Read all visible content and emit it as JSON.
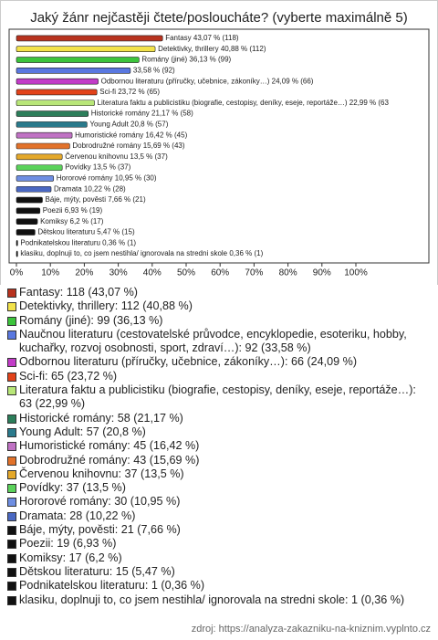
{
  "chart_data": {
    "type": "bar",
    "orientation": "horizontal",
    "title": "Jaký žánr nejčastěji čtete/posloucháte? (vyberte maximálně 5)",
    "categories": [
      "Fantasy: 118 (43,07 %)",
      "Detektivky, thrillery: 112 (40,88 %)",
      "Romány (jiné): 99 (36,13 %)",
      "Naučnou literaturu (cestovatelské průvodce, encyklopedie, esoteriku, hobby, kuchařky, rozvoj osobnosti, sport, zdraví…): 92 (33,58 %)",
      "Odbornou literaturu (příručky, učebnice, zákoníky…): 66 (24,09 %)",
      "Sci-fi: 65 (23,72 %)",
      "Literatura faktu a publicistiku (biografie, cestopisy, deníky, eseje, reportáže…): 63 (22,99 %)",
      "Historické romány: 58 (21,17 %)",
      "Young Adult: 57 (20,8 %)",
      "Humoristické romány: 45 (16,42 %)",
      "Dobrodružné romány: 43 (15,69 %)",
      "Červenou knihovnu: 37 (13,5 %)",
      "Povídky: 37 (13,5 %)",
      "Hororové romány: 30 (10,95 %)",
      "Dramata: 28 (10,22 %)",
      "Báje, mýty, pověsti: 21 (7,66 %)",
      "Poezii: 19 (6,93 %)",
      "Komiksy: 17 (6,2 %)",
      "Dětskou literaturu: 15 (5,47 %)",
      "Podnikatelskou literaturu: 1 (0,36 %)",
      "klasiku, doplnuji to, co jsem nestihla/ ignorovala na stredni skole: 1 (0,36 %)"
    ],
    "values": [
      43.07,
      40.88,
      36.13,
      33.58,
      24.09,
      23.72,
      22.99,
      21.17,
      20.8,
      16.42,
      15.69,
      13.5,
      13.5,
      10.95,
      10.22,
      7.66,
      6.93,
      6.2,
      5.47,
      0.36,
      0.36
    ],
    "value_labels": [
      "Fantasy 43,07 % (118)",
      "Detektivky, thrillery 40,88 % (112)",
      "Romány (jiné) 36,13 % (99)",
      "33,58 % (92)",
      "Odbornou literaturu (příručky, učebnice, zákoníky…) 24,09 % (66)",
      "Sci-fi 23,72 % (65)",
      "Literatura faktu a publicistiku (biografie, cestopisy, deníky, eseje, reportáže…) 22,99 % (63",
      "Historické romány 21,17 % (58)",
      "Young Adult 20,8 % (57)",
      "Humoristické romány 16,42 % (45)",
      "Dobrodružné romány 15,69 % (43)",
      "Červenou knihovnu 13,5 % (37)",
      "Povídky 13,5 % (37)",
      "Hororové romány 10,95 % (30)",
      "Dramata 10,22 % (28)",
      "Báje, mýty, pověsti 7,66 % (21)",
      "Poezii 6,93 % (19)",
      "Komiksy 6,2 % (17)",
      "Dětskou literaturu 5,47 % (15)",
      "Podnikatelskou literaturu 0,36 % (1)",
      "klasiku, doplnuji to, co jsem nestihla/ ignorovala na stredni skole 0,36 % (1)"
    ],
    "colors": [
      "#b8321e",
      "#f2e24a",
      "#3cc43c",
      "#5a78e0",
      "#c23cc8",
      "#e2421a",
      "#b8e678",
      "#2c7e5a",
      "#2a7a8c",
      "#c072c4",
      "#e2722a",
      "#e4a82a",
      "#5ad25a",
      "#6e8ee2",
      "#4a68c2",
      "#111111",
      "#111111",
      "#111111",
      "#111111",
      "#111111",
      "#111111"
    ],
    "xlim": [
      0,
      100
    ],
    "xticks": [
      {
        "value": 0,
        "label": "0%"
      },
      {
        "value": 10,
        "label": "10%"
      },
      {
        "value": 20,
        "label": "20%"
      },
      {
        "value": 30,
        "label": "30%"
      },
      {
        "value": 40,
        "label": "40%"
      },
      {
        "value": 50,
        "label": "50%"
      },
      {
        "value": 60,
        "label": "60%"
      },
      {
        "value": 70,
        "label": "70%"
      },
      {
        "value": 80,
        "label": "80%"
      },
      {
        "value": 90,
        "label": "90%"
      },
      {
        "value": 100,
        "label": "100%"
      }
    ],
    "source": "zdroj: https://analyza-zakazniku-na-kniznim.vyplnto.cz"
  }
}
